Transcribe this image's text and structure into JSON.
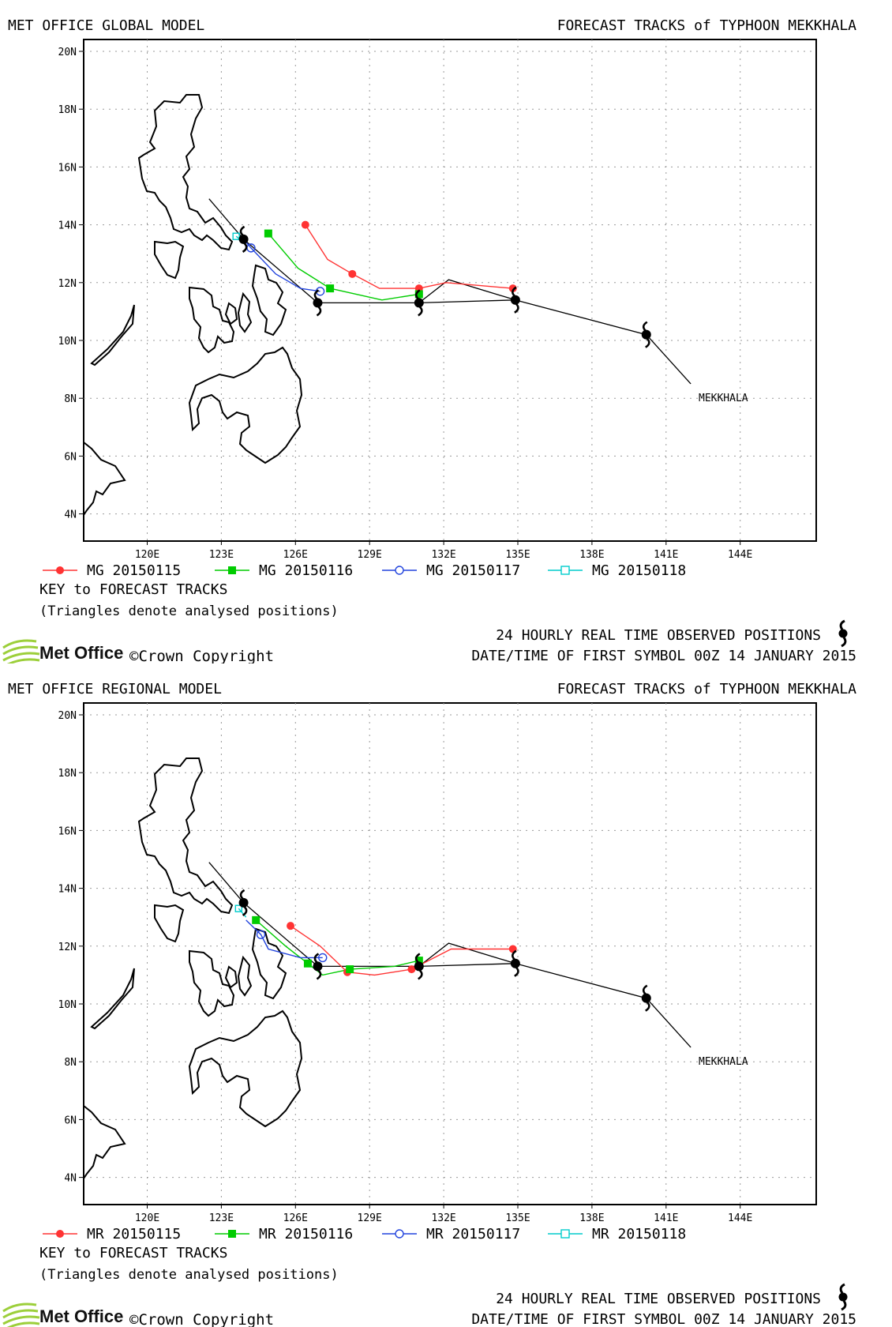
{
  "footer": {
    "observed": "24 HOURLY REAL TIME OBSERVED POSITIONS",
    "first_symbol": "DATE/TIME OF FIRST SYMBOL 00Z 14 JANUARY 2015",
    "brand": "Met Office",
    "copyright": "©Crown Copyright"
  },
  "map": {
    "lon_ticks": [
      "120E",
      "123E",
      "126E",
      "129E",
      "132E",
      "135E",
      "138E",
      "141E",
      "144E"
    ],
    "lat_ticks": [
      "20N",
      "18N",
      "16N",
      "14N",
      "12N",
      "10N",
      "8N",
      "6N",
      "4N"
    ],
    "storm_label": "MEKKHALA",
    "key_title": "KEY to FORECAST TRACKS",
    "key_note": "(Triangles denote analysed positions)"
  },
  "colors": {
    "run15": "#ff3333",
    "run16": "#00cc00",
    "run17": "#2244dd",
    "run18": "#00cccc",
    "observed": "#000000",
    "land": "#000000"
  },
  "panels": [
    {
      "model_title": "MET OFFICE GLOBAL MODEL",
      "forecast_title": "FORECAST TRACKS of TYPHOON MEKKHALA",
      "legend": [
        "MG 20150115",
        "MG 20150116",
        "MG 20150117",
        "MG 20150118"
      ]
    },
    {
      "model_title": "MET OFFICE REGIONAL MODEL",
      "forecast_title": "FORECAST TRACKS of TYPHOON MEKKHALA",
      "legend": [
        "MR 20150115",
        "MR 20150116",
        "MR 20150117",
        "MR 20150118"
      ]
    }
  ]
}
